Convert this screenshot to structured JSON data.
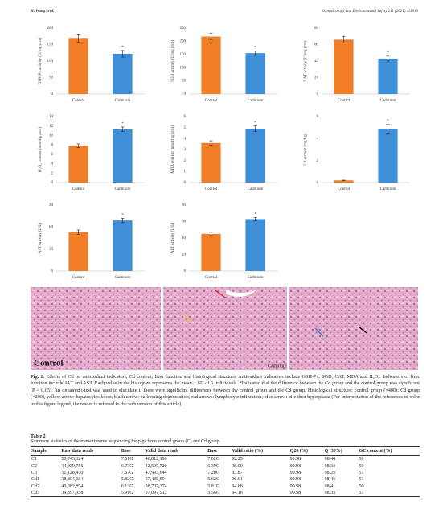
{
  "header": {
    "left": "H. Wang et al.",
    "right": "Ecotoxicology and Environmental Safety 211 (2021) 111910"
  },
  "chart_data": [
    {
      "type": "bar",
      "ylabel": "GSH-Px activity (U/mg prot)",
      "categories": [
        "Control",
        "Cadmium"
      ],
      "values": [
        170,
        122
      ],
      "errors": [
        12,
        10
      ],
      "colors": [
        "#f07e26",
        "#3f8fd8"
      ],
      "ylim": [
        0,
        200
      ],
      "yticks": [
        0,
        50,
        100,
        150,
        200
      ],
      "annotation": "*"
    },
    {
      "type": "bar",
      "ylabel": "SOD activity (U/mg prot)",
      "categories": [
        "Control",
        "Cadmium"
      ],
      "values": [
        218,
        155
      ],
      "errors": [
        13,
        8
      ],
      "colors": [
        "#f07e26",
        "#3f8fd8"
      ],
      "ylim": [
        0,
        250
      ],
      "yticks": [
        0,
        50,
        100,
        150,
        200,
        250
      ],
      "annotation": "*"
    },
    {
      "type": "bar",
      "ylabel": "CAT activity (U/mg prot)",
      "categories": [
        "Control",
        "Cadmium"
      ],
      "values": [
        66,
        43
      ],
      "errors": [
        4,
        3
      ],
      "colors": [
        "#f07e26",
        "#3f8fd8"
      ],
      "ylim": [
        0,
        80
      ],
      "yticks": [
        0,
        20,
        40,
        60,
        80
      ],
      "annotation": "*"
    },
    {
      "type": "bar",
      "ylabel": "H₂O₂ content (mmol/g prot)",
      "categories": [
        "Control",
        "Cadmium"
      ],
      "values": [
        7.8,
        11.3
      ],
      "errors": [
        0.4,
        0.5
      ],
      "colors": [
        "#f07e26",
        "#3f8fd8"
      ],
      "ylim": [
        0,
        14
      ],
      "yticks": [
        0,
        2,
        4,
        6,
        8,
        10,
        12,
        14
      ],
      "annotation": "*"
    },
    {
      "type": "bar",
      "ylabel": "MDA content (nmol/mg prot)",
      "categories": [
        "Control",
        "Cadmium"
      ],
      "values": [
        3.6,
        4.9
      ],
      "errors": [
        0.2,
        0.25
      ],
      "colors": [
        "#f07e26",
        "#3f8fd8"
      ],
      "ylim": [
        0,
        6
      ],
      "yticks": [
        0,
        1,
        2,
        3,
        4,
        5,
        6
      ],
      "annotation": "*"
    },
    {
      "type": "bar",
      "ylabel": "Cd content (mg/kg)",
      "categories": [
        "Control",
        "Cadmium"
      ],
      "values": [
        0.2,
        4.9
      ],
      "errors": [
        0.02,
        0.4
      ],
      "colors": [
        "#f07e26",
        "#3f8fd8"
      ],
      "ylim": [
        0,
        6
      ],
      "yticks": [
        0,
        2,
        4,
        6
      ],
      "annotation": "*"
    },
    {
      "type": "bar",
      "ylabel": "AST activity (U/L)",
      "categories": [
        "Control",
        "Cadmium"
      ],
      "values": [
        53,
        69
      ],
      "errors": [
        3,
        3
      ],
      "colors": [
        "#f07e26",
        "#3f8fd8"
      ],
      "ylim": [
        0,
        90
      ],
      "yticks": [
        0,
        30,
        60,
        90
      ],
      "annotation": "*"
    },
    {
      "type": "bar",
      "ylabel": "ALT activity (U/L)",
      "categories": [
        "Control",
        "Cadmium"
      ],
      "values": [
        45,
        63
      ],
      "errors": [
        2,
        2
      ],
      "colors": [
        "#f07e26",
        "#3f8fd8"
      ],
      "ylim": [
        0,
        80
      ],
      "yticks": [
        0,
        20,
        40,
        60,
        80
      ],
      "annotation": "*"
    }
  ],
  "histology": {
    "control_label": "Control",
    "cadmium_label": "Cadmium"
  },
  "caption": {
    "label": "Fig. 1.",
    "text": "Effects of Cd on antioxidant indicators, Cd content, liver function and histological structure. Antioxidant indicators include GSH-Px, SOD, CAT, MDA and H₂O₂. Indicators of liver function include ALT and AST. Each value in the histogram represents the mean ± SD of 6 individuals. *Indicated that the difference between the Cd group and the control group was significant (P < 0.05). An unpaired t-test was used to elucidate if there were significant differences between the control group and the Cd group. Histological structure: control group (×400); Cd group (×200), yellow arrow: hepatocytes loose; black arrow: ballooning degeneration; red arrows: lymphocyte infiltration; blue arrow: bile duct hyperplasia (For interpretation of the references to color in this figure legend, the reader is referred to the web version of this article)."
  },
  "table": {
    "label": "Table 2",
    "title": "Summary statistics of the transcriptome sequencing for pigs from control group (C) and Cd group.",
    "columns": [
      "Sample",
      "Raw data reads",
      "Base",
      "Valid data reads",
      "Base",
      "Valid ratio (%)",
      "Q20 (%)",
      "Q (30%)",
      "GC content (%)"
    ],
    "rows": [
      [
        "C1",
        "50,743,324",
        "7.61G",
        "46,812,190",
        "7.02G",
        "92.25",
        "99.98",
        "98.44",
        "50"
      ],
      [
        "C2",
        "44,839,756",
        "6.73G",
        "42,595,720",
        "6.39G",
        "95.00",
        "99.98",
        "98.33",
        "50"
      ],
      [
        "C3",
        "51,128,470",
        "7.67G",
        "47,993,644",
        "7.20G",
        "93.87",
        "99.98",
        "98.25",
        "51"
      ],
      [
        "Cd1",
        "38,804,034",
        "5.82G",
        "37,488,904",
        "5.62G",
        "96.61",
        "99.98",
        "98.45",
        "51"
      ],
      [
        "Cd2",
        "40,882,854",
        "6.13G",
        "38,707,374",
        "5.81G",
        "94.68",
        "99.98",
        "98.41",
        "50"
      ],
      [
        "Cd3",
        "39,397,358",
        "5.91G",
        "37,097,512",
        "5.56G",
        "94.16",
        "99.98",
        "98.35",
        "51"
      ]
    ]
  }
}
